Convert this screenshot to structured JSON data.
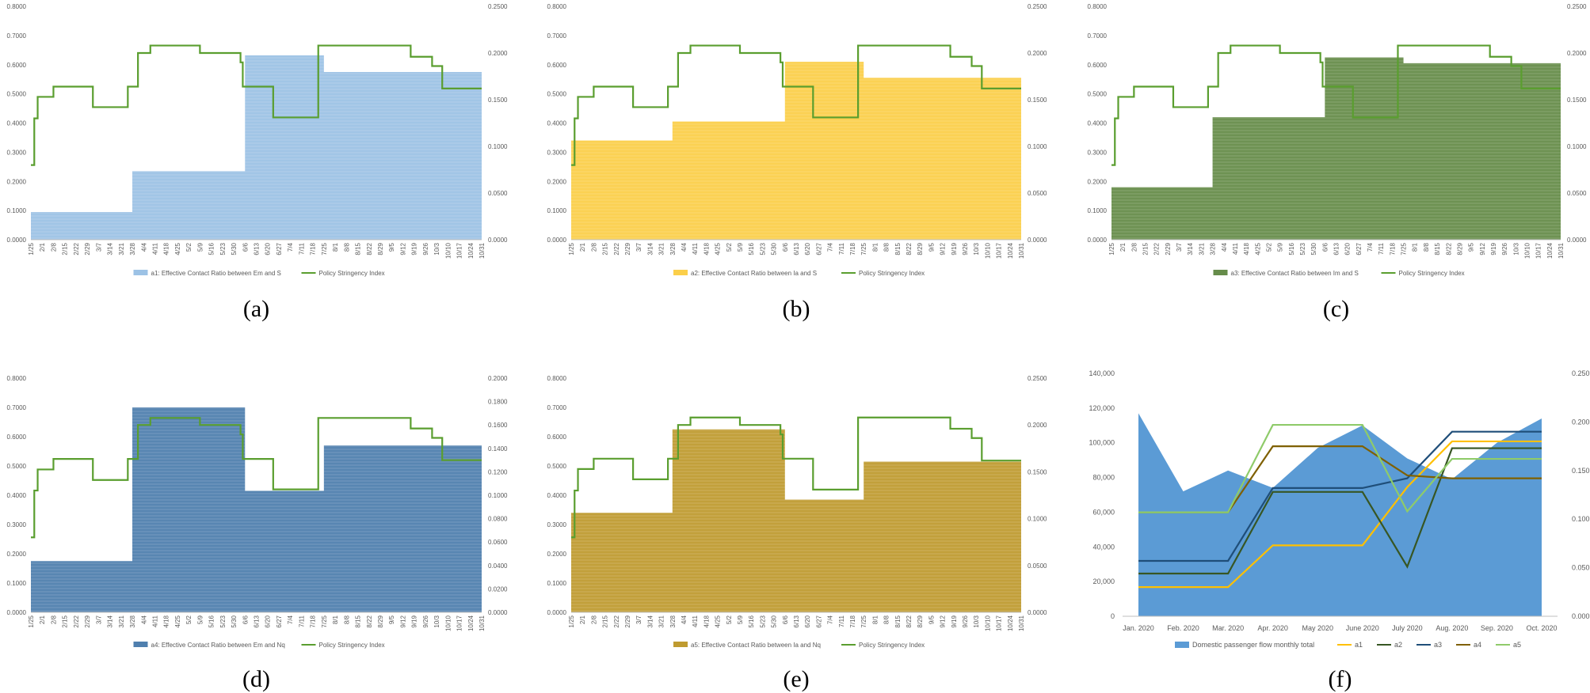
{
  "figure": {
    "colors": {
      "policy": "#5A9E2F",
      "a1": "#9CC2E5",
      "a2": "#FBCF4A",
      "a3": "#668C4A",
      "a4": "#4F7FAE",
      "a5": "#BF9B30",
      "passenger": "#5B9BD5",
      "line_a1": "#FFC000",
      "line_a2": "#375623",
      "line_a3": "#1F4E79",
      "line_a4": "#7F6000",
      "line_a5": "#8FCB6A"
    }
  },
  "chart_data": [
    {
      "id": "a",
      "type": "area",
      "panel_label": "(a)",
      "left_axis": {
        "ylim": [
          0,
          0.8
        ],
        "ticks": [
          "0.0000",
          "0.1000",
          "0.2000",
          "0.3000",
          "0.4000",
          "0.5000",
          "0.6000",
          "0.7000",
          "0.8000"
        ]
      },
      "right_axis": {
        "ylim": [
          0,
          0.25
        ],
        "ticks": [
          "0.0000",
          "0.0500",
          "0.1000",
          "0.1500",
          "0.2000",
          "0.2500"
        ]
      },
      "x_ticks": [
        "1/25",
        "2/1",
        "2/8",
        "2/15",
        "2/22",
        "2/29",
        "3/7",
        "3/14",
        "3/21",
        "3/28",
        "4/4",
        "4/11",
        "4/18",
        "4/25",
        "5/2",
        "5/9",
        "5/16",
        "5/23",
        "5/30",
        "6/6",
        "6/13",
        "6/20",
        "6/27",
        "7/4",
        "7/11",
        "7/18",
        "7/25",
        "8/1",
        "8/8",
        "8/15",
        "8/22",
        "8/29",
        "9/5",
        "9/12",
        "9/19",
        "9/26",
        "10/3",
        "10/10",
        "10/17",
        "10/24",
        "10/31"
      ],
      "area_series": {
        "name": "a1:  Effective Contact Ratio between Em and S",
        "steps": [
          [
            0,
            0.095
          ],
          [
            9,
            0.235
          ],
          [
            19,
            0.632
          ],
          [
            26,
            0.575
          ]
        ]
      },
      "policy_series": {
        "name": "Policy Stringency Index",
        "steps": [
          [
            0,
            0.08
          ],
          [
            0.3,
            0.13
          ],
          [
            0.6,
            0.153
          ],
          [
            2,
            0.164
          ],
          [
            5.5,
            0.142
          ],
          [
            8.6,
            0.164
          ],
          [
            9.5,
            0.2
          ],
          [
            10.6,
            0.208
          ],
          [
            15,
            0.2
          ],
          [
            18.6,
            0.19
          ],
          [
            18.8,
            0.164
          ],
          [
            21.5,
            0.131
          ],
          [
            25.5,
            0.208
          ],
          [
            33.7,
            0.196
          ],
          [
            35.6,
            0.186
          ],
          [
            36.5,
            0.162
          ]
        ]
      }
    },
    {
      "id": "b",
      "type": "area",
      "panel_label": "(b)",
      "left_axis": {
        "ylim": [
          0,
          0.8
        ],
        "ticks": [
          "0.0000",
          "0.1000",
          "0.2000",
          "0.3000",
          "0.4000",
          "0.5000",
          "0.6000",
          "0.7000",
          "0.8000"
        ]
      },
      "right_axis": {
        "ylim": [
          0,
          0.25
        ],
        "ticks": [
          "0.0000",
          "0.0500",
          "0.1000",
          "0.1500",
          "0.2000",
          "0.2500"
        ]
      },
      "x_ticks": [
        "1/25",
        "2/1",
        "2/8",
        "2/15",
        "2/22",
        "2/29",
        "3/7",
        "3/14",
        "3/21",
        "3/28",
        "4/4",
        "4/11",
        "4/18",
        "4/25",
        "5/2",
        "5/9",
        "5/16",
        "5/23",
        "5/30",
        "6/6",
        "6/13",
        "6/20",
        "6/27",
        "7/4",
        "7/11",
        "7/18",
        "7/25",
        "8/1",
        "8/8",
        "8/15",
        "8/22",
        "8/29",
        "9/5",
        "9/12",
        "9/19",
        "9/26",
        "10/3",
        "10/10",
        "10/17",
        "10/24",
        "10/31"
      ],
      "area_series": {
        "name": "a2:  Effective Contact Ratio  between Ia and S",
        "steps": [
          [
            0,
            0.34
          ],
          [
            9,
            0.405
          ],
          [
            19,
            0.61
          ],
          [
            26,
            0.555
          ]
        ]
      },
      "policy_series": {
        "name": "Policy Stringency Index",
        "steps": [
          [
            0,
            0.08
          ],
          [
            0.3,
            0.13
          ],
          [
            0.6,
            0.153
          ],
          [
            2,
            0.164
          ],
          [
            5.5,
            0.142
          ],
          [
            8.6,
            0.164
          ],
          [
            9.5,
            0.2
          ],
          [
            10.6,
            0.208
          ],
          [
            15,
            0.2
          ],
          [
            18.6,
            0.19
          ],
          [
            18.8,
            0.164
          ],
          [
            21.5,
            0.131
          ],
          [
            25.5,
            0.208
          ],
          [
            33.7,
            0.196
          ],
          [
            35.6,
            0.186
          ],
          [
            36.5,
            0.162
          ]
        ]
      }
    },
    {
      "id": "c",
      "type": "area",
      "panel_label": "(c)",
      "left_axis": {
        "ylim": [
          0,
          0.8
        ],
        "ticks": [
          "0.0000",
          "0.1000",
          "0.2000",
          "0.3000",
          "0.4000",
          "0.5000",
          "0.6000",
          "0.7000",
          "0.8000"
        ]
      },
      "right_axis": {
        "ylim": [
          0,
          0.25
        ],
        "ticks": [
          "0.0000",
          "0.0500",
          "0.1000",
          "0.1500",
          "0.2000",
          "0.2500"
        ]
      },
      "x_ticks": [
        "1/25",
        "2/1",
        "2/8",
        "2/15",
        "2/22",
        "2/29",
        "3/7",
        "3/14",
        "3/21",
        "3/28",
        "4/4",
        "4/11",
        "4/18",
        "4/25",
        "5/2",
        "5/9",
        "5/16",
        "5/23",
        "5/30",
        "6/6",
        "6/13",
        "6/20",
        "6/27",
        "7/4",
        "7/11",
        "7/18",
        "7/25",
        "8/1",
        "8/8",
        "8/15",
        "8/22",
        "8/29",
        "9/5",
        "9/12",
        "9/19",
        "9/26",
        "10/3",
        "10/10",
        "10/17",
        "10/24",
        "10/31"
      ],
      "area_series": {
        "name": "a3:  Effective Contact Ratio  between Im and S",
        "steps": [
          [
            0,
            0.18
          ],
          [
            9,
            0.42
          ],
          [
            19,
            0.625
          ],
          [
            26,
            0.605
          ]
        ]
      },
      "policy_series": {
        "name": "Policy Stringency Index",
        "steps": [
          [
            0,
            0.08
          ],
          [
            0.3,
            0.13
          ],
          [
            0.6,
            0.153
          ],
          [
            2,
            0.164
          ],
          [
            5.5,
            0.142
          ],
          [
            8.6,
            0.164
          ],
          [
            9.5,
            0.2
          ],
          [
            10.6,
            0.208
          ],
          [
            15,
            0.2
          ],
          [
            18.6,
            0.19
          ],
          [
            18.8,
            0.164
          ],
          [
            21.5,
            0.131
          ],
          [
            25.5,
            0.208
          ],
          [
            33.7,
            0.196
          ],
          [
            35.6,
            0.186
          ],
          [
            36.5,
            0.162
          ]
        ]
      }
    },
    {
      "id": "d",
      "type": "area",
      "panel_label": "(d)",
      "left_axis": {
        "ylim": [
          0,
          0.8
        ],
        "ticks": [
          "0.0000",
          "0.1000",
          "0.2000",
          "0.3000",
          "0.4000",
          "0.5000",
          "0.6000",
          "0.7000",
          "0.8000"
        ]
      },
      "right_axis": {
        "ylim": [
          0,
          0.2
        ],
        "ticks": [
          "0.0000",
          "0.0200",
          "0.0400",
          "0.0600",
          "0.0800",
          "0.1000",
          "0.1200",
          "0.1400",
          "0.1600",
          "0.1800",
          "0.2000"
        ]
      },
      "x_ticks": [
        "1/25",
        "2/1",
        "2/8",
        "2/15",
        "2/22",
        "2/29",
        "3/7",
        "3/14",
        "3/21",
        "3/28",
        "4/4",
        "4/11",
        "4/18",
        "4/25",
        "5/2",
        "5/9",
        "5/16",
        "5/23",
        "5/30",
        "6/6",
        "6/13",
        "6/20",
        "6/27",
        "7/4",
        "7/11",
        "7/18",
        "7/25",
        "8/1",
        "8/8",
        "8/15",
        "8/22",
        "8/29",
        "9/5",
        "9/12",
        "9/19",
        "9/26",
        "10/3",
        "10/10",
        "10/17",
        "10/24",
        "10/31"
      ],
      "area_series": {
        "name": "a4:  Effective Contact Ratio  between Em and Nq",
        "steps": [
          [
            0,
            0.175
          ],
          [
            9,
            0.7
          ],
          [
            19,
            0.415
          ],
          [
            26,
            0.57
          ]
        ]
      },
      "policy_series": {
        "name": "Policy Stringency Index",
        "steps": [
          [
            0,
            0.064
          ],
          [
            0.3,
            0.104
          ],
          [
            0.6,
            0.122
          ],
          [
            2,
            0.131
          ],
          [
            5.5,
            0.113
          ],
          [
            8.6,
            0.131
          ],
          [
            9.5,
            0.16
          ],
          [
            10.6,
            0.166
          ],
          [
            15,
            0.16
          ],
          [
            18.6,
            0.152
          ],
          [
            18.8,
            0.131
          ],
          [
            21.5,
            0.105
          ],
          [
            25.5,
            0.166
          ],
          [
            33.7,
            0.157
          ],
          [
            35.6,
            0.149
          ],
          [
            36.5,
            0.13
          ]
        ]
      }
    },
    {
      "id": "e",
      "type": "area",
      "panel_label": "(e)",
      "left_axis": {
        "ylim": [
          0,
          0.8
        ],
        "ticks": [
          "0.0000",
          "0.1000",
          "0.2000",
          "0.3000",
          "0.4000",
          "0.5000",
          "0.6000",
          "0.7000",
          "0.8000"
        ]
      },
      "right_axis": {
        "ylim": [
          0,
          0.25
        ],
        "ticks": [
          "0.0000",
          "0.0500",
          "0.1000",
          "0.1500",
          "0.2000",
          "0.2500"
        ]
      },
      "x_ticks": [
        "1/25",
        "2/1",
        "2/8",
        "2/15",
        "2/22",
        "2/29",
        "3/7",
        "3/14",
        "3/21",
        "3/28",
        "4/4",
        "4/11",
        "4/18",
        "4/25",
        "5/2",
        "5/9",
        "5/16",
        "5/23",
        "5/30",
        "6/6",
        "6/13",
        "6/20",
        "6/27",
        "7/4",
        "7/11",
        "7/18",
        "7/25",
        "8/1",
        "8/8",
        "8/15",
        "8/22",
        "8/29",
        "9/5",
        "9/12",
        "9/19",
        "9/26",
        "10/3",
        "10/10",
        "10/17",
        "10/24",
        "10/31"
      ],
      "area_series": {
        "name": "a5:  Effective Contact Ratio  between Ia and Nq",
        "steps": [
          [
            0,
            0.34
          ],
          [
            9,
            0.625
          ],
          [
            19,
            0.385
          ],
          [
            26,
            0.515
          ]
        ]
      },
      "policy_series": {
        "name": "Policy Stringency Index",
        "steps": [
          [
            0,
            0.08
          ],
          [
            0.3,
            0.13
          ],
          [
            0.6,
            0.153
          ],
          [
            2,
            0.164
          ],
          [
            5.5,
            0.142
          ],
          [
            8.6,
            0.164
          ],
          [
            9.5,
            0.2
          ],
          [
            10.6,
            0.208
          ],
          [
            15,
            0.2
          ],
          [
            18.6,
            0.19
          ],
          [
            18.8,
            0.164
          ],
          [
            21.5,
            0.131
          ],
          [
            25.5,
            0.208
          ],
          [
            33.7,
            0.196
          ],
          [
            35.6,
            0.186
          ],
          [
            36.5,
            0.162
          ]
        ]
      }
    },
    {
      "id": "f",
      "type": "area",
      "panel_label": "(f)",
      "categories": [
        "Jan. 2020",
        "Feb. 2020",
        "Mar. 2020",
        "Apr. 2020",
        "May 2020",
        "June 2020",
        "July 2020",
        "Aug. 2020",
        "Sep. 2020",
        "Oct. 2020"
      ],
      "left_axis": {
        "ylim": [
          0,
          140000
        ],
        "ticks": [
          "0",
          "20,000",
          "40,000",
          "60,000",
          "80,000",
          "100,000",
          "120,000",
          "140,000"
        ]
      },
      "right_axis": {
        "ylim": [
          0,
          0.25
        ],
        "ticks": [
          "0.000",
          "0.050",
          "0.100",
          "0.150",
          "0.200",
          "0.250"
        ]
      },
      "area_series": {
        "name": "Domestic passenger flow monthly total",
        "values": [
          117000,
          72000,
          84000,
          74000,
          97000,
          110000,
          91000,
          79000,
          100000,
          114000
        ]
      },
      "line_series": [
        {
          "name": "a1",
          "values": [
            0.03,
            0.03,
            0.03,
            0.073,
            0.073,
            0.073,
            0.133,
            0.18,
            0.18,
            0.18
          ]
        },
        {
          "name": "a2",
          "values": [
            0.044,
            0.044,
            0.044,
            0.128,
            0.128,
            0.128,
            0.051,
            0.173,
            0.173,
            0.173
          ]
        },
        {
          "name": "a3",
          "values": [
            0.057,
            0.057,
            0.057,
            0.132,
            0.132,
            0.132,
            0.142,
            0.19,
            0.19,
            0.19
          ]
        },
        {
          "name": "a4",
          "values": [
            0.107,
            0.107,
            0.107,
            0.175,
            0.175,
            0.175,
            0.145,
            0.142,
            0.142,
            0.142
          ]
        },
        {
          "name": "a5",
          "values": [
            0.107,
            0.107,
            0.107,
            0.197,
            0.197,
            0.197,
            0.108,
            0.162,
            0.162,
            0.162
          ]
        }
      ]
    }
  ]
}
